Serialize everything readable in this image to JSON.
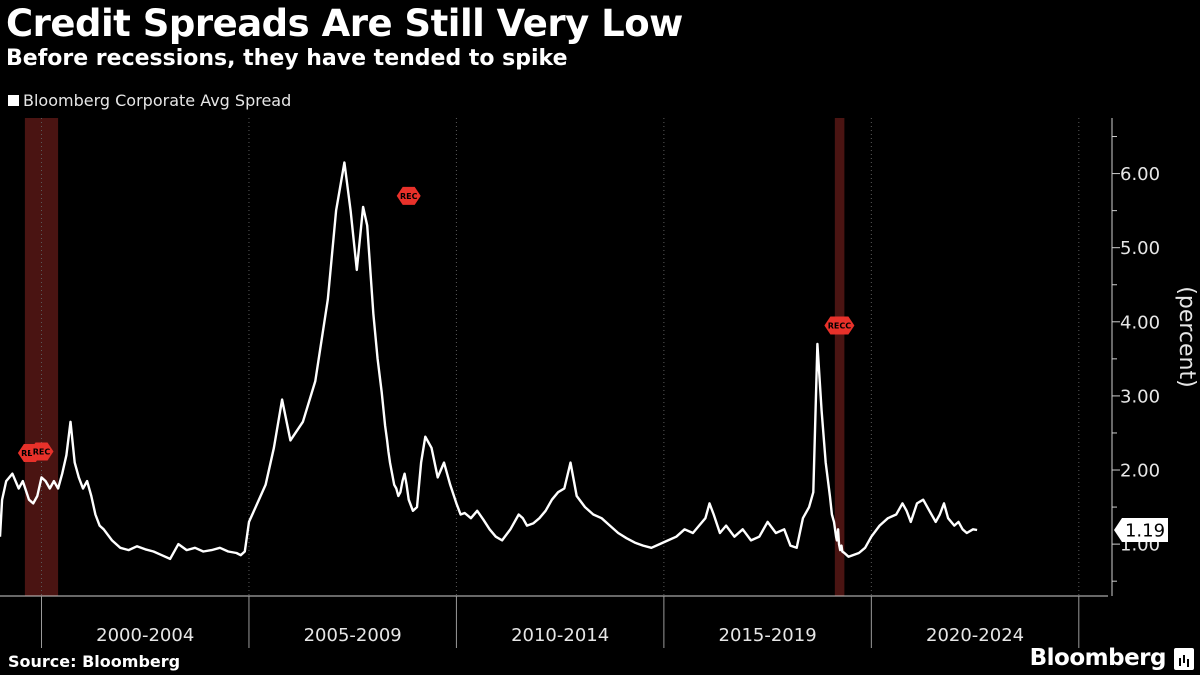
{
  "header": {
    "title": "Credit Spreads Are Still Very Low",
    "subtitle": "Before recessions, they have tended to spike"
  },
  "legend": {
    "label": "Bloomberg Corporate Avg Spread"
  },
  "footer": {
    "source": "Source: Bloomberg",
    "brand": "Bloomberg"
  },
  "colors": {
    "background": "#000000",
    "line": "#ffffff",
    "recession_band": "#4a1412",
    "recession_marker": "#e8312a",
    "grid": "#5a5a5a"
  },
  "chart_data": {
    "type": "line",
    "title": "Credit Spreads Are Still Very Low",
    "subtitle": "Before recessions, they have tended to spike",
    "xlabel": "",
    "ylabel": "(percent)",
    "xlim": [
      1999.0,
      2025.8
    ],
    "ylim": [
      0.3,
      6.75
    ],
    "yticks": [
      1.0,
      2.0,
      3.0,
      4.0,
      5.0,
      6.0
    ],
    "ytick_labels": [
      "1.00",
      "2.00",
      "3.00",
      "4.00",
      "5.00",
      "6.00"
    ],
    "x_period_labels": [
      {
        "label": "2000-2004",
        "start": 2000.0,
        "end": 2005.0
      },
      {
        "label": "2005-2009",
        "start": 2005.0,
        "end": 2010.0
      },
      {
        "label": "2010-2014",
        "start": 2010.0,
        "end": 2015.0
      },
      {
        "label": "2015-2019",
        "start": 2015.0,
        "end": 2020.0
      },
      {
        "label": "2020-2024",
        "start": 2020.0,
        "end": 2025.0
      }
    ],
    "grid": "vertical dotted at period boundaries",
    "legend_position": "top-left",
    "recession_bands": [
      {
        "start": 1999.6,
        "end": 2000.4
      },
      {
        "start": 2019.12,
        "end": 2019.35
      }
    ],
    "recession_markers": [
      {
        "label": "REC",
        "x": 1999.72,
        "y": 2.23
      },
      {
        "label": "REC",
        "x": 2000.0,
        "y": 2.25
      },
      {
        "label": "REC",
        "x": 2008.85,
        "y": 5.7
      },
      {
        "label": "RECC",
        "x": 2019.23,
        "y": 3.95
      }
    ],
    "last_value": {
      "label": "1.19",
      "value": 1.19
    },
    "series": [
      {
        "name": "Bloomberg Corporate Avg Spread",
        "x": [
          1999.0,
          1999.05,
          1999.15,
          1999.3,
          1999.45,
          1999.55,
          1999.7,
          1999.8,
          1999.9,
          2000.0,
          2000.1,
          2000.2,
          2000.3,
          2000.4,
          2000.5,
          2000.6,
          2000.7,
          2000.8,
          2000.9,
          2001.0,
          2001.1,
          2001.2,
          2001.3,
          2001.4,
          2001.5,
          2001.7,
          2001.9,
          2002.1,
          2002.3,
          2002.5,
          2002.7,
          2002.9,
          2003.1,
          2003.3,
          2003.5,
          2003.7,
          2003.9,
          2004.1,
          2004.3,
          2004.5,
          2004.7,
          2004.8,
          2004.9,
          2005.0,
          2005.2,
          2005.4,
          2005.6,
          2005.8,
          2006.0,
          2006.3,
          2006.6,
          2006.9,
          2007.1,
          2007.3,
          2007.45,
          2007.6,
          2007.75,
          2007.85,
          2008.0,
          2008.1,
          2008.2,
          2008.28,
          2008.33,
          2008.36,
          2008.4,
          2008.45,
          2008.5,
          2008.55,
          2008.6,
          2008.65,
          2008.7,
          2008.75,
          2008.8,
          2008.85,
          2008.95,
          2009.05,
          2009.15,
          2009.25,
          2009.4,
          2009.55,
          2009.7,
          2009.85,
          2010.0,
          2010.1,
          2010.2,
          2010.35,
          2010.5,
          2010.65,
          2010.8,
          2010.95,
          2011.1,
          2011.3,
          2011.5,
          2011.6,
          2011.7,
          2011.85,
          2012.0,
          2012.15,
          2012.3,
          2012.45,
          2012.6,
          2012.75,
          2012.9,
          2013.1,
          2013.3,
          2013.5,
          2013.7,
          2013.9,
          2014.1,
          2014.3,
          2014.5,
          2014.7,
          2014.9,
          2015.1,
          2015.3,
          2015.5,
          2015.7,
          2015.85,
          2016.0,
          2016.1,
          2016.2,
          2016.35,
          2016.5,
          2016.7,
          2016.9,
          2017.1,
          2017.3,
          2017.5,
          2017.7,
          2017.9,
          2018.05,
          2018.2,
          2018.35,
          2018.5,
          2018.6,
          2018.7,
          2018.8,
          2018.9,
          2019.0,
          2019.05,
          2019.1,
          2019.15,
          2019.17,
          2019.2,
          2019.22,
          2019.25,
          2019.28,
          2019.3,
          2019.35,
          2019.45,
          2019.55,
          2019.7,
          2019.85,
          2020.0,
          2020.2,
          2020.4,
          2020.6,
          2020.75,
          2020.85,
          2020.95,
          2021.1,
          2021.25,
          2021.4,
          2021.55,
          2021.65,
          2021.75,
          2021.85,
          2022.0,
          2022.1,
          2022.2,
          2022.3,
          2022.45,
          2022.55
        ],
        "values": [
          1.1,
          1.6,
          1.85,
          1.95,
          1.75,
          1.85,
          1.6,
          1.55,
          1.65,
          1.9,
          1.85,
          1.75,
          1.85,
          1.75,
          1.95,
          2.2,
          2.65,
          2.1,
          1.9,
          1.75,
          1.85,
          1.65,
          1.4,
          1.25,
          1.2,
          1.05,
          0.95,
          0.92,
          0.97,
          0.93,
          0.9,
          0.85,
          0.8,
          1.0,
          0.92,
          0.95,
          0.9,
          0.92,
          0.95,
          0.9,
          0.88,
          0.85,
          0.9,
          1.3,
          1.55,
          1.8,
          2.3,
          2.95,
          2.4,
          2.65,
          3.2,
          4.3,
          5.5,
          6.15,
          5.5,
          4.7,
          5.55,
          5.3,
          4.1,
          3.5,
          3.05,
          2.6,
          2.4,
          2.25,
          2.1,
          1.95,
          1.8,
          1.75,
          1.65,
          1.7,
          1.85,
          1.95,
          1.8,
          1.6,
          1.45,
          1.5,
          2.1,
          2.45,
          2.3,
          1.9,
          2.1,
          1.8,
          1.55,
          1.4,
          1.42,
          1.35,
          1.45,
          1.33,
          1.2,
          1.1,
          1.05,
          1.2,
          1.4,
          1.35,
          1.25,
          1.28,
          1.35,
          1.45,
          1.6,
          1.7,
          1.75,
          2.1,
          1.65,
          1.5,
          1.4,
          1.35,
          1.25,
          1.15,
          1.08,
          1.02,
          0.98,
          0.95,
          1.0,
          1.05,
          1.1,
          1.2,
          1.15,
          1.25,
          1.35,
          1.55,
          1.4,
          1.15,
          1.25,
          1.1,
          1.2,
          1.05,
          1.1,
          1.3,
          1.15,
          1.2,
          0.98,
          0.95,
          1.35,
          1.5,
          1.7,
          3.7,
          2.8,
          2.1,
          1.65,
          1.4,
          1.3,
          1.1,
          1.05,
          1.2,
          1.0,
          0.92,
          0.98,
          0.9,
          0.88,
          0.83,
          0.85,
          0.88,
          0.95,
          1.1,
          1.25,
          1.35,
          1.4,
          1.55,
          1.45,
          1.3,
          1.55,
          1.6,
          1.45,
          1.3,
          1.4,
          1.55,
          1.35,
          1.25,
          1.3,
          1.2,
          1.15,
          1.2,
          1.19
        ]
      }
    ]
  }
}
